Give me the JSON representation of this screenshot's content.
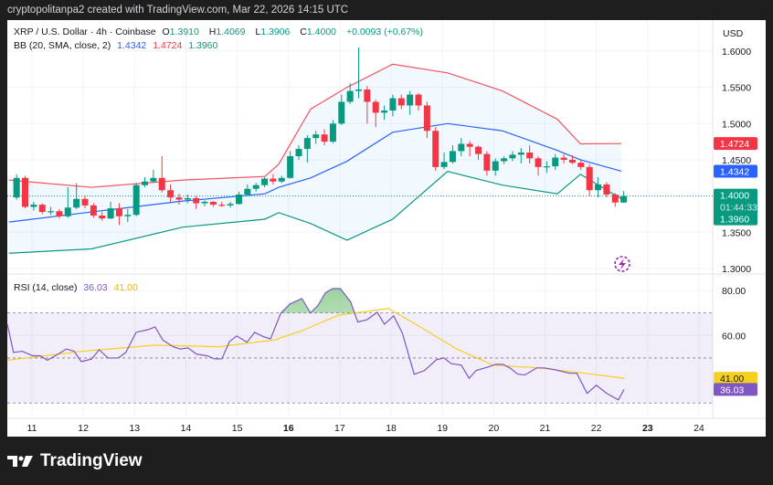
{
  "header": {
    "text": "cryptopolitanpa2 created with TradingView.com, Mar 22, 2026 14:15 UTC"
  },
  "legend": {
    "symbol": "XRP / U.S. Dollar · 4h · Coinbase",
    "o_label": "O",
    "o": "1.3910",
    "h_label": "H",
    "h": "1.4069",
    "l_label": "L",
    "l": "1.3906",
    "c_label": "C",
    "c": "1.4000",
    "change": "+0.0093 (+0.67%)",
    "bb_label": "BB (20, SMA, close, 2)",
    "bb_basis": "1.4342",
    "bb_upper": "1.4724",
    "bb_lower": "1.3960",
    "rsi_label": "RSI (14, close)",
    "rsi_value": "36.03",
    "rsi_ma": "41.00"
  },
  "footer": {
    "brand": "TradingView"
  },
  "colors": {
    "up": "#089981",
    "down": "#f23645",
    "bb_upper": "#f7525f",
    "bb_basis": "#2962ff",
    "bb_lower": "#089981",
    "rsi": "#7e57c2",
    "rsi_ma": "#f5d020"
  },
  "chart_data": [
    {
      "type": "candlestick",
      "currency_label": "USD",
      "y_ticks": [
        "1.6000",
        "1.5500",
        "1.5000",
        "1.4500",
        "1.3500",
        "1.3000"
      ],
      "ylim": [
        1.2875,
        1.635
      ],
      "x_ticks": [
        {
          "day": 11,
          "label": "11"
        },
        {
          "day": 12,
          "label": "12"
        },
        {
          "day": 13,
          "label": "13"
        },
        {
          "day": 14,
          "label": "14"
        },
        {
          "day": 15,
          "label": "15"
        },
        {
          "day": 16,
          "label": "16",
          "bold": true
        },
        {
          "day": 17,
          "label": "17"
        },
        {
          "day": 18,
          "label": "18"
        },
        {
          "day": 19,
          "label": "19"
        },
        {
          "day": 20,
          "label": "20"
        },
        {
          "day": 21,
          "label": "21"
        },
        {
          "day": 22,
          "label": "22"
        },
        {
          "day": 23,
          "label": "23",
          "bold": true
        },
        {
          "day": 24,
          "label": "24"
        }
      ],
      "first_candle_day": 10.7,
      "candle_interval_days": 0.16667,
      "ohlc": [
        [
          1.398,
          1.43,
          1.395,
          1.425
        ],
        [
          1.425,
          1.428,
          1.383,
          1.385
        ],
        [
          1.385,
          1.392,
          1.38,
          1.388
        ],
        [
          1.388,
          1.39,
          1.375,
          1.378
        ],
        [
          1.378,
          1.385,
          1.374,
          1.379
        ],
        [
          1.379,
          1.382,
          1.369,
          1.372
        ],
        [
          1.372,
          1.412,
          1.37,
          1.384
        ],
        [
          1.384,
          1.418,
          1.382,
          1.396
        ],
        [
          1.396,
          1.4,
          1.383,
          1.387
        ],
        [
          1.387,
          1.39,
          1.37,
          1.373
        ],
        [
          1.373,
          1.378,
          1.366,
          1.369
        ],
        [
          1.369,
          1.392,
          1.368,
          1.383
        ],
        [
          1.383,
          1.39,
          1.36,
          1.372
        ],
        [
          1.372,
          1.382,
          1.364,
          1.374
        ],
        [
          1.374,
          1.418,
          1.372,
          1.415
        ],
        [
          1.415,
          1.426,
          1.412,
          1.42
        ],
        [
          1.42,
          1.436,
          1.418,
          1.425
        ],
        [
          1.425,
          1.455,
          1.405,
          1.408
        ],
        [
          1.408,
          1.416,
          1.392,
          1.398
        ],
        [
          1.398,
          1.403,
          1.388,
          1.395
        ],
        [
          1.395,
          1.402,
          1.39,
          1.397
        ],
        [
          1.397,
          1.4,
          1.382,
          1.39
        ],
        [
          1.39,
          1.394,
          1.386,
          1.392
        ],
        [
          1.392,
          1.393,
          1.385,
          1.388
        ],
        [
          1.388,
          1.392,
          1.385,
          1.387
        ],
        [
          1.387,
          1.392,
          1.384,
          1.389
        ],
        [
          1.389,
          1.406,
          1.388,
          1.402
        ],
        [
          1.402,
          1.416,
          1.4,
          1.41
        ],
        [
          1.41,
          1.418,
          1.406,
          1.415
        ],
        [
          1.415,
          1.426,
          1.412,
          1.424
        ],
        [
          1.424,
          1.43,
          1.416,
          1.42
        ],
        [
          1.42,
          1.428,
          1.418,
          1.425
        ],
        [
          1.425,
          1.462,
          1.424,
          1.455
        ],
        [
          1.455,
          1.47,
          1.45,
          1.465
        ],
        [
          1.465,
          1.484,
          1.446,
          1.48
        ],
        [
          1.48,
          1.49,
          1.472,
          1.485
        ],
        [
          1.485,
          1.492,
          1.47,
          1.475
        ],
        [
          1.475,
          1.505,
          1.473,
          1.5
        ],
        [
          1.5,
          1.54,
          1.498,
          1.53
        ],
        [
          1.53,
          1.556,
          1.527,
          1.545
        ],
        [
          1.545,
          1.605,
          1.535,
          1.547
        ],
        [
          1.547,
          1.552,
          1.5,
          1.53
        ],
        [
          1.53,
          1.533,
          1.495,
          1.515
        ],
        [
          1.515,
          1.525,
          1.505,
          1.518
        ],
        [
          1.518,
          1.54,
          1.51,
          1.535
        ],
        [
          1.535,
          1.54,
          1.52,
          1.525
        ],
        [
          1.525,
          1.545,
          1.512,
          1.54
        ],
        [
          1.54,
          1.542,
          1.518,
          1.525
        ],
        [
          1.525,
          1.53,
          1.48,
          1.49
        ],
        [
          1.49,
          1.495,
          1.435,
          1.44
        ],
        [
          1.44,
          1.46,
          1.437,
          1.447
        ],
        [
          1.447,
          1.47,
          1.445,
          1.462
        ],
        [
          1.462,
          1.48,
          1.455,
          1.472
        ],
        [
          1.472,
          1.476,
          1.455,
          1.468
        ],
        [
          1.468,
          1.47,
          1.45,
          1.458
        ],
        [
          1.458,
          1.462,
          1.428,
          1.435
        ],
        [
          1.435,
          1.452,
          1.428,
          1.448
        ],
        [
          1.448,
          1.455,
          1.444,
          1.452
        ],
        [
          1.452,
          1.462,
          1.448,
          1.457
        ],
        [
          1.457,
          1.466,
          1.445,
          1.46
        ],
        [
          1.46,
          1.47,
          1.445,
          1.452
        ],
        [
          1.452,
          1.455,
          1.428,
          1.44
        ],
        [
          1.44,
          1.448,
          1.432,
          1.441
        ],
        [
          1.441,
          1.458,
          1.436,
          1.453
        ],
        [
          1.453,
          1.458,
          1.445,
          1.45
        ],
        [
          1.45,
          1.456,
          1.444,
          1.446
        ],
        [
          1.446,
          1.45,
          1.436,
          1.44
        ],
        [
          1.44,
          1.444,
          1.4,
          1.408
        ],
        [
          1.408,
          1.426,
          1.398,
          1.416
        ],
        [
          1.416,
          1.419,
          1.398,
          1.402
        ],
        [
          1.402,
          1.404,
          1.385,
          1.391
        ],
        [
          1.391,
          1.4069,
          1.3906,
          1.4
        ]
      ],
      "bollinger": [
        {
          "day": 10.55,
          "upper": 1.422,
          "basis": 1.364,
          "lower": 1.321
        },
        {
          "day": 12.16,
          "upper": 1.412,
          "basis": 1.378,
          "lower": 1.327
        },
        {
          "day": 13.94,
          "upper": 1.422,
          "basis": 1.393,
          "lower": 1.357
        },
        {
          "day": 15.54,
          "upper": 1.427,
          "basis": 1.403,
          "lower": 1.368
        },
        {
          "day": 15.81,
          "upper": 1.444,
          "basis": 1.412,
          "lower": 1.377
        },
        {
          "day": 16.43,
          "upper": 1.52,
          "basis": 1.425,
          "lower": 1.362
        },
        {
          "day": 17.14,
          "upper": 1.55,
          "basis": 1.448,
          "lower": 1.339
        },
        {
          "day": 18.03,
          "upper": 1.582,
          "basis": 1.488,
          "lower": 1.368
        },
        {
          "day": 19.1,
          "upper": 1.57,
          "basis": 1.5,
          "lower": 1.434
        },
        {
          "day": 20.17,
          "upper": 1.545,
          "basis": 1.49,
          "lower": 1.415
        },
        {
          "day": 21.24,
          "upper": 1.506,
          "basis": 1.463,
          "lower": 1.403
        },
        {
          "day": 21.69,
          "upper": 1.472,
          "basis": 1.45,
          "lower": 1.43
        },
        {
          "day": 22.49,
          "upper": 1.4724,
          "basis": 1.4342,
          "lower": 1.396
        }
      ],
      "price_labels": {
        "upper": "1.4724",
        "basis": "1.4342",
        "last": "1.4000",
        "countdown": "01:44:33",
        "lower": "1.3960"
      },
      "last_price": 1.4
    },
    {
      "type": "line",
      "y_ticks": [
        "80.00",
        "60.00"
      ],
      "levels": [
        70,
        50,
        30
      ],
      "rsi": [
        [
          10.52,
          65
        ],
        [
          10.64,
          52.5
        ],
        [
          10.81,
          53
        ],
        [
          11.01,
          51
        ],
        [
          11.16,
          51
        ],
        [
          11.3,
          49
        ],
        [
          11.53,
          52
        ],
        [
          11.67,
          54
        ],
        [
          11.82,
          53
        ],
        [
          11.96,
          48.4
        ],
        [
          12.16,
          49.5
        ],
        [
          12.31,
          53.7
        ],
        [
          12.48,
          50
        ],
        [
          12.68,
          50
        ],
        [
          12.83,
          52.5
        ],
        [
          13.03,
          61.4
        ],
        [
          13.26,
          62.6
        ],
        [
          13.4,
          63.8
        ],
        [
          13.55,
          58
        ],
        [
          13.75,
          55
        ],
        [
          13.89,
          54
        ],
        [
          14.04,
          54.5
        ],
        [
          14.21,
          51.7
        ],
        [
          14.41,
          51
        ],
        [
          14.56,
          49.6
        ],
        [
          14.7,
          49.6
        ],
        [
          14.85,
          57.3
        ],
        [
          14.99,
          59.8
        ],
        [
          15.19,
          57
        ],
        [
          15.34,
          61.4
        ],
        [
          15.51,
          59.5
        ],
        [
          15.65,
          58.5
        ],
        [
          15.85,
          69.9
        ],
        [
          16.03,
          74
        ],
        [
          16.26,
          76.4
        ],
        [
          16.43,
          70
        ],
        [
          16.58,
          73.5
        ],
        [
          16.72,
          79
        ],
        [
          16.86,
          80.8
        ],
        [
          17.01,
          80.8
        ],
        [
          17.21,
          75
        ],
        [
          17.35,
          66
        ],
        [
          17.53,
          67
        ],
        [
          17.73,
          70.3
        ],
        [
          17.87,
          65
        ],
        [
          18.05,
          68.7
        ],
        [
          18.22,
          61
        ],
        [
          18.45,
          42.8
        ],
        [
          18.65,
          44.4
        ],
        [
          18.88,
          49.2
        ],
        [
          19.03,
          50
        ],
        [
          19.17,
          47.5
        ],
        [
          19.37,
          46.8
        ],
        [
          19.52,
          41
        ],
        [
          19.66,
          44.5
        ],
        [
          19.89,
          46
        ],
        [
          20.04,
          47.2
        ],
        [
          20.18,
          47.2
        ],
        [
          20.32,
          45.5
        ],
        [
          20.47,
          42.8
        ],
        [
          20.61,
          42.5
        ],
        [
          20.84,
          45.6
        ],
        [
          20.99,
          45.6
        ],
        [
          21.19,
          44.8
        ],
        [
          21.48,
          43.2
        ],
        [
          21.62,
          43.2
        ],
        [
          21.82,
          34.3
        ],
        [
          22.0,
          37.9
        ],
        [
          22.2,
          34.3
        ],
        [
          22.43,
          31.4
        ],
        [
          22.54,
          36.03
        ]
      ],
      "rsi_ma": [
        [
          10.52,
          49
        ],
        [
          11.98,
          53
        ],
        [
          13.4,
          55.7
        ],
        [
          14.65,
          55
        ],
        [
          15.72,
          58
        ],
        [
          16.25,
          62
        ],
        [
          16.97,
          69
        ],
        [
          17.95,
          72
        ],
        [
          18.48,
          65
        ],
        [
          19.28,
          54
        ],
        [
          19.99,
          46.8
        ],
        [
          20.88,
          45.6
        ],
        [
          21.77,
          43.2
        ],
        [
          22.54,
          41
        ]
      ],
      "value_labels": {
        "rsi": "36.03",
        "rsi_ma": "41.00"
      }
    }
  ]
}
